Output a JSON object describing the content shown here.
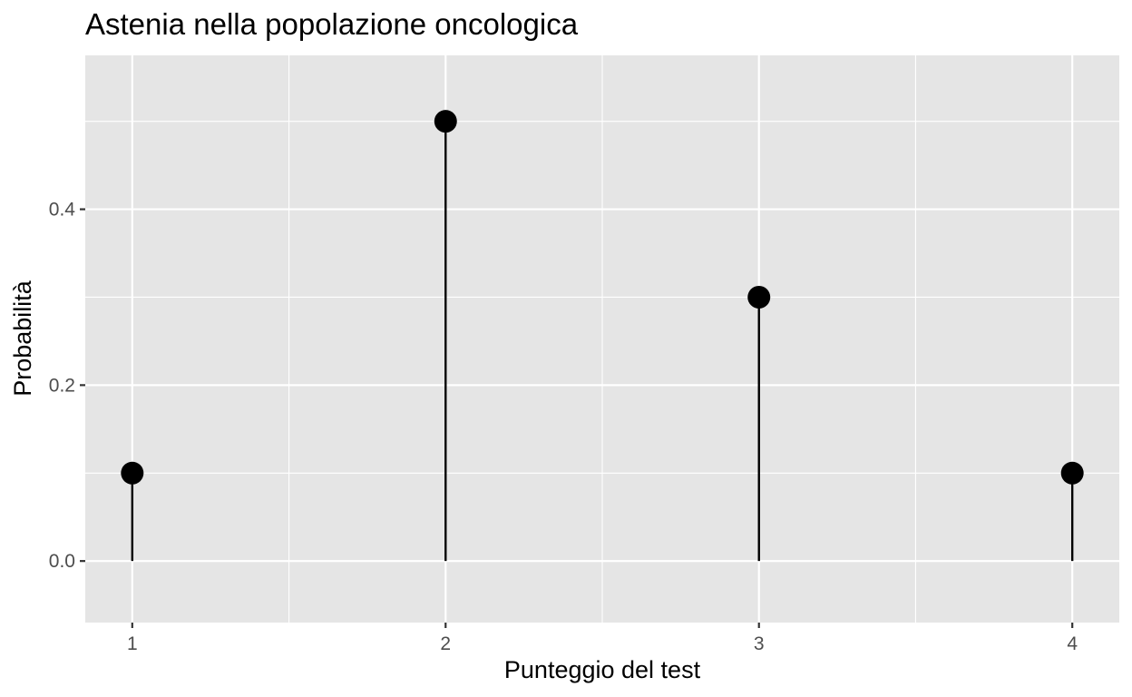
{
  "chart_data": {
    "type": "lollipop",
    "title": "Astenia nella popolazione oncologica",
    "xlabel": "Punteggio del test",
    "ylabel": "Probabilità",
    "x": [
      1,
      2,
      3,
      4
    ],
    "values": [
      0.1,
      0.5,
      0.3,
      0.1
    ],
    "xlim": [
      0.85,
      4.15
    ],
    "ylim": [
      -0.07,
      0.575
    ],
    "x_ticks": [
      1,
      2,
      3,
      4
    ],
    "x_tick_labels": [
      "1",
      "2",
      "3",
      "4"
    ],
    "y_ticks": [
      0.0,
      0.2,
      0.4
    ],
    "y_tick_labels": [
      "0.0",
      "0.2",
      "0.4"
    ],
    "y_minor_ticks": [
      0.1,
      0.3,
      0.5
    ],
    "x_minor_ticks": [
      1.5,
      2.5,
      3.5
    ],
    "grid": true,
    "legend": "none",
    "colors": {
      "panel_background": "#e5e5e5",
      "grid": "#ffffff",
      "marker": "#000000",
      "stem": "#000000",
      "tick_label": "#4d4d4d"
    }
  }
}
